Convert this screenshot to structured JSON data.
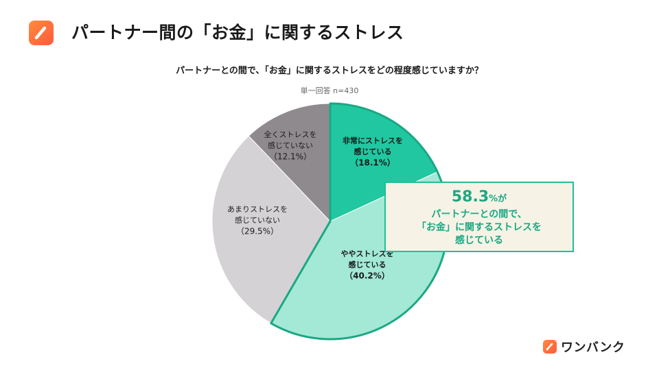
{
  "header": {
    "title": "パートナー間の「お金」に関するストレス"
  },
  "chart_data": {
    "type": "pie",
    "title": "パートナーとの間で、「お金」に関するストレスをどの程度感じていますか？",
    "subtitle": "単一回答 n=430",
    "start_angle_deg": 0,
    "direction": "clockwise",
    "slices": [
      {
        "label_lines": [
          "非常にストレスを",
          "感じている"
        ],
        "value": 18.1,
        "value_label": "（18.1%）",
        "color": "#21c7a0"
      },
      {
        "label_lines": [
          "ややストレスを",
          "感じている"
        ],
        "value": 40.2,
        "value_label": "（40.2%）",
        "color": "#a3e9d6"
      },
      {
        "label_lines": [
          "あまりストレスを",
          "感じていない"
        ],
        "value": 29.5,
        "value_label": "（29.5%）",
        "color": "#d5d2d6"
      },
      {
        "label_lines": [
          "全くストレスを",
          "感じていない"
        ],
        "value": 12.1,
        "value_label": "（12.1%）",
        "color": "#8e8a8e"
      }
    ],
    "highlight_group": [
      0,
      1
    ],
    "highlight_stroke": "#1aa883"
  },
  "callout": {
    "value": "58.3",
    "suffix": "%が",
    "lines": [
      "パートナーとの間で、",
      "「お金」に関するストレスを",
      "感じている"
    ]
  },
  "brand": {
    "name": "ワンバンク"
  }
}
